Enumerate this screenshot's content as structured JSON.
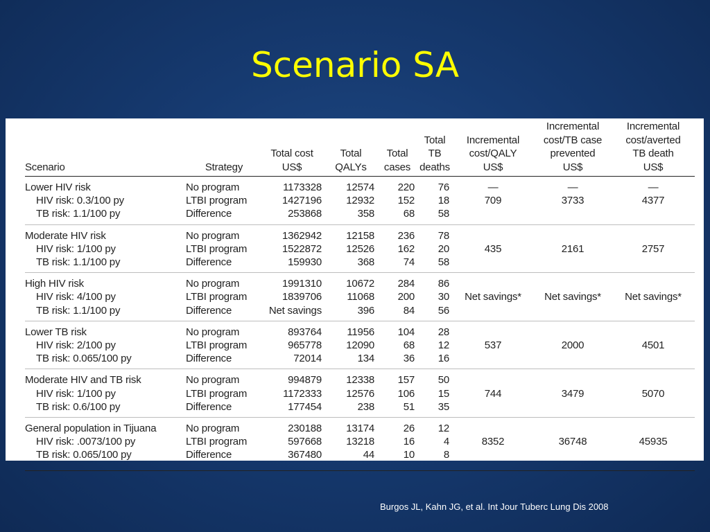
{
  "slide": {
    "title": "Scenario SA",
    "citation": "Burgos JL, Kahn JG, et al. Int Jour Tuberc Lung Dis 2008"
  },
  "table": {
    "headers": {
      "scenario": "Scenario",
      "strategy": "Strategy",
      "total_cost": [
        "Total cost",
        "US$"
      ],
      "total_qalys": [
        "Total",
        "QALYs"
      ],
      "total_cases": [
        "Total",
        "cases"
      ],
      "total_deaths": [
        "Total",
        "TB",
        "deaths"
      ],
      "inc_qaly": [
        "Incremental",
        "cost/QALY",
        "US$"
      ],
      "inc_case": [
        "Incremental",
        "cost/TB case",
        "prevented",
        "US$"
      ],
      "inc_death": [
        "Incremental",
        "cost/averted",
        "TB death",
        "US$"
      ]
    },
    "groups": [
      {
        "rows": [
          [
            "Lower HIV risk",
            "No program",
            "1173328",
            "12574",
            "220",
            "76"
          ],
          [
            "HIV risk: 0.3/100 py",
            "LTBI program",
            "1427196",
            "12932",
            "152",
            "18"
          ],
          [
            "TB risk: 1.1/100 py",
            "Difference",
            "253868",
            "358",
            "68",
            "58"
          ]
        ],
        "dash": [
          "—",
          "—",
          "—"
        ],
        "inc": [
          "709",
          "3733",
          "4377"
        ]
      },
      {
        "rows": [
          [
            "Moderate HIV risk",
            "No program",
            "1362942",
            "12158",
            "236",
            "78"
          ],
          [
            "HIV risk: 1/100 py",
            "LTBI program",
            "1522872",
            "12526",
            "162",
            "20"
          ],
          [
            "TB risk: 1.1/100 py",
            "Difference",
            "159930",
            "368",
            "74",
            "58"
          ]
        ],
        "inc": [
          "435",
          "2161",
          "2757"
        ]
      },
      {
        "rows": [
          [
            "High HIV risk",
            "No program",
            "1991310",
            "10672",
            "284",
            "86"
          ],
          [
            "HIV risk: 4/100 py",
            "LTBI program",
            "1839706",
            "11068",
            "200",
            "30"
          ],
          [
            "TB risk: 1.1/100 py",
            "Difference",
            "Net savings",
            "396",
            "84",
            "56"
          ]
        ],
        "inc": [
          "Net savings*",
          "Net savings*",
          "Net savings*"
        ]
      },
      {
        "rows": [
          [
            "Lower TB risk",
            "No program",
            "893764",
            "11956",
            "104",
            "28"
          ],
          [
            "HIV risk: 2/100 py",
            "LTBI program",
            "965778",
            "12090",
            "68",
            "12"
          ],
          [
            "TB risk: 0.065/100 py",
            "Difference",
            "72014",
            "134",
            "36",
            "16"
          ]
        ],
        "inc": [
          "537",
          "2000",
          "4501"
        ]
      },
      {
        "rows": [
          [
            "Moderate HIV and TB risk",
            "No program",
            "994879",
            "12338",
            "157",
            "50"
          ],
          [
            "HIV risk: 1/100 py",
            "LTBI program",
            "1172333",
            "12576",
            "106",
            "15"
          ],
          [
            "TB risk: 0.6/100 py",
            "Difference",
            "177454",
            "238",
            "51",
            "35"
          ]
        ],
        "inc": [
          "744",
          "3479",
          "5070"
        ]
      },
      {
        "rows": [
          [
            "General population in Tijuana",
            "No program",
            "230188",
            "13174",
            "26",
            "12"
          ],
          [
            "HIV risk: .0073/100 py",
            "LTBI program",
            "597668",
            "13218",
            "16",
            "4"
          ],
          [
            "TB risk: 0.065/100 py",
            "Difference",
            "367480",
            "44",
            "10",
            "8"
          ]
        ],
        "inc": [
          "8352",
          "36748",
          "45935"
        ]
      }
    ]
  }
}
